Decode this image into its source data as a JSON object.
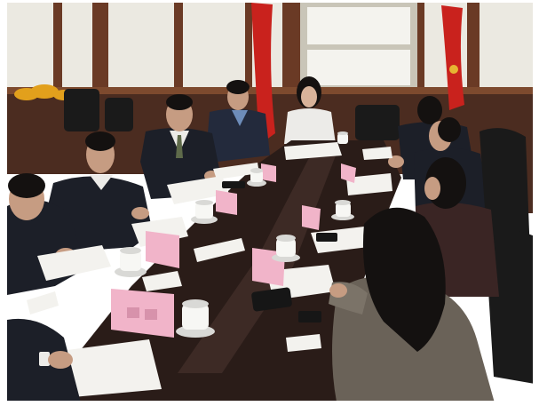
{
  "colors": {
    "background": "#ffffff",
    "wall": "#ebe9e1",
    "window_glass": "#f4f3ee",
    "window_frame": "#c9c5b8",
    "wood_post": "#6a3a25",
    "wood_panel": "#4b2c20",
    "wood_trim": "#7d4a2e",
    "flag": "#c9221d",
    "flag_emblem": "#e6b432",
    "flowers": "#e2a01c",
    "table": "#2a1c18",
    "table_sheen": "#4c3732",
    "suit": "#1c1f28",
    "suit_blue": "#232a3c",
    "shirt": "#ecebe8",
    "shirt_blue": "#6d8cb9",
    "tie": "#5e6a4a",
    "skin": "#c69c82",
    "skin_light": "#d8b39a",
    "hair": "#141110",
    "jacket": "#6a6258",
    "jacket_light": "#7b7368",
    "maroon": "#3a2524",
    "chair": "#1a1a1a",
    "paper": "#f3f2ee",
    "placard": "#f1b4c9",
    "placard_ink": "#c67b98",
    "cup": "#f7f7f4",
    "cup_shade": "#d9d9d6",
    "device": "#161616"
  }
}
